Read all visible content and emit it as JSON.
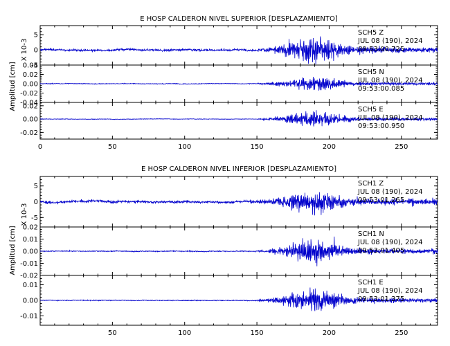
{
  "chart_data": [
    {
      "type": "line",
      "title": "E HOSP CALDERON NIVEL SUPERIOR [DESPLAZAMIENTO]",
      "ylabel": "Amplitud [cm]",
      "xlim": [
        0,
        275
      ],
      "x_ticks": [
        0,
        50,
        100,
        150,
        200,
        250
      ],
      "x_tick_labels": [
        "0",
        "50",
        "100",
        "150",
        "200",
        "250"
      ],
      "panels": [
        {
          "station": "SCH5",
          "component": "Z",
          "date": "JUL 08 (190), 2024",
          "time": "09:53:00.725",
          "scale_label": "X 10-3",
          "ylim": [
            -5,
            8
          ],
          "y_ticks": [
            5,
            0,
            -5
          ],
          "y_tick_labels": [
            "5",
            "0",
            "-5"
          ],
          "approx_peak": 8.0,
          "pre_event_amplitude": 0.7,
          "strong_motion_start": 148
        },
        {
          "station": "SCH5",
          "component": "N",
          "date": "JUL 08 (190), 2024",
          "time": "09:53:00.085",
          "ylim": [
            -0.04,
            0.04
          ],
          "y_ticks": [
            0.04,
            0.02,
            0.0,
            -0.02,
            -0.04
          ],
          "y_tick_labels": [
            "0.04",
            "0.02",
            "0.00",
            "-0.02",
            "-0.04"
          ],
          "approx_peak": 0.03,
          "pre_event_amplitude": 0.0015,
          "strong_motion_start": 150
        },
        {
          "station": "SCH5",
          "component": "E",
          "date": "JUL 08 (190), 2024",
          "time": "09:53:00.950",
          "ylim": [
            -0.03,
            0.025
          ],
          "y_ticks": [
            0.02,
            0.0,
            -0.02
          ],
          "y_tick_labels": [
            "0.02",
            "0.00",
            "-0.02"
          ],
          "approx_peak": 0.022,
          "pre_event_amplitude": 0.0008,
          "strong_motion_start": 150
        }
      ]
    },
    {
      "type": "line",
      "title": "E HOSP CALDERON NIVEL INFERIOR [DESPLAZAMIENTO]",
      "ylabel": "Amplitud [cm]",
      "xlim": [
        0,
        275
      ],
      "x_ticks": [
        50,
        100,
        150,
        200,
        250
      ],
      "x_tick_labels": [
        "50",
        "100",
        "150",
        "200",
        "250"
      ],
      "panels": [
        {
          "station": "SCH1",
          "component": "Z",
          "date": "JUL 08 (190), 2024",
          "time": "09:53:01.265",
          "scale_label": "X 10-3",
          "ylim": [
            -8,
            8
          ],
          "y_ticks": [
            5,
            0,
            -5
          ],
          "y_tick_labels": [
            "5",
            "0",
            "-5"
          ],
          "approx_peak": 7.0,
          "pre_event_amplitude": 0.8,
          "strong_motion_start": 145
        },
        {
          "station": "SCH1",
          "component": "N",
          "date": "JUL 08 (190), 2024",
          "time": "09:53:01.405",
          "ylim": [
            -0.02,
            0.02
          ],
          "y_ticks": [
            0.02,
            0.01,
            0.0,
            -0.01,
            -0.02
          ],
          "y_tick_labels": [
            "0.02",
            "0.01",
            "0.00",
            "-0.01",
            "-0.02"
          ],
          "approx_peak": 0.02,
          "pre_event_amplitude": 0.0008,
          "strong_motion_start": 150
        },
        {
          "station": "SCH1",
          "component": "E",
          "date": "JUL 08 (190), 2024",
          "time": "09:53:01.375",
          "ylim": [
            -0.016,
            0.016
          ],
          "y_ticks": [
            0.01,
            0.0,
            -0.01
          ],
          "y_tick_labels": [
            "0.01",
            "0.00",
            "-0.01"
          ],
          "approx_peak": 0.015,
          "pre_event_amplitude": 0.0005,
          "strong_motion_start": 150
        }
      ]
    }
  ],
  "colors": {
    "trace": "#0000cc",
    "axis": "#000000",
    "background": "#ffffff"
  }
}
